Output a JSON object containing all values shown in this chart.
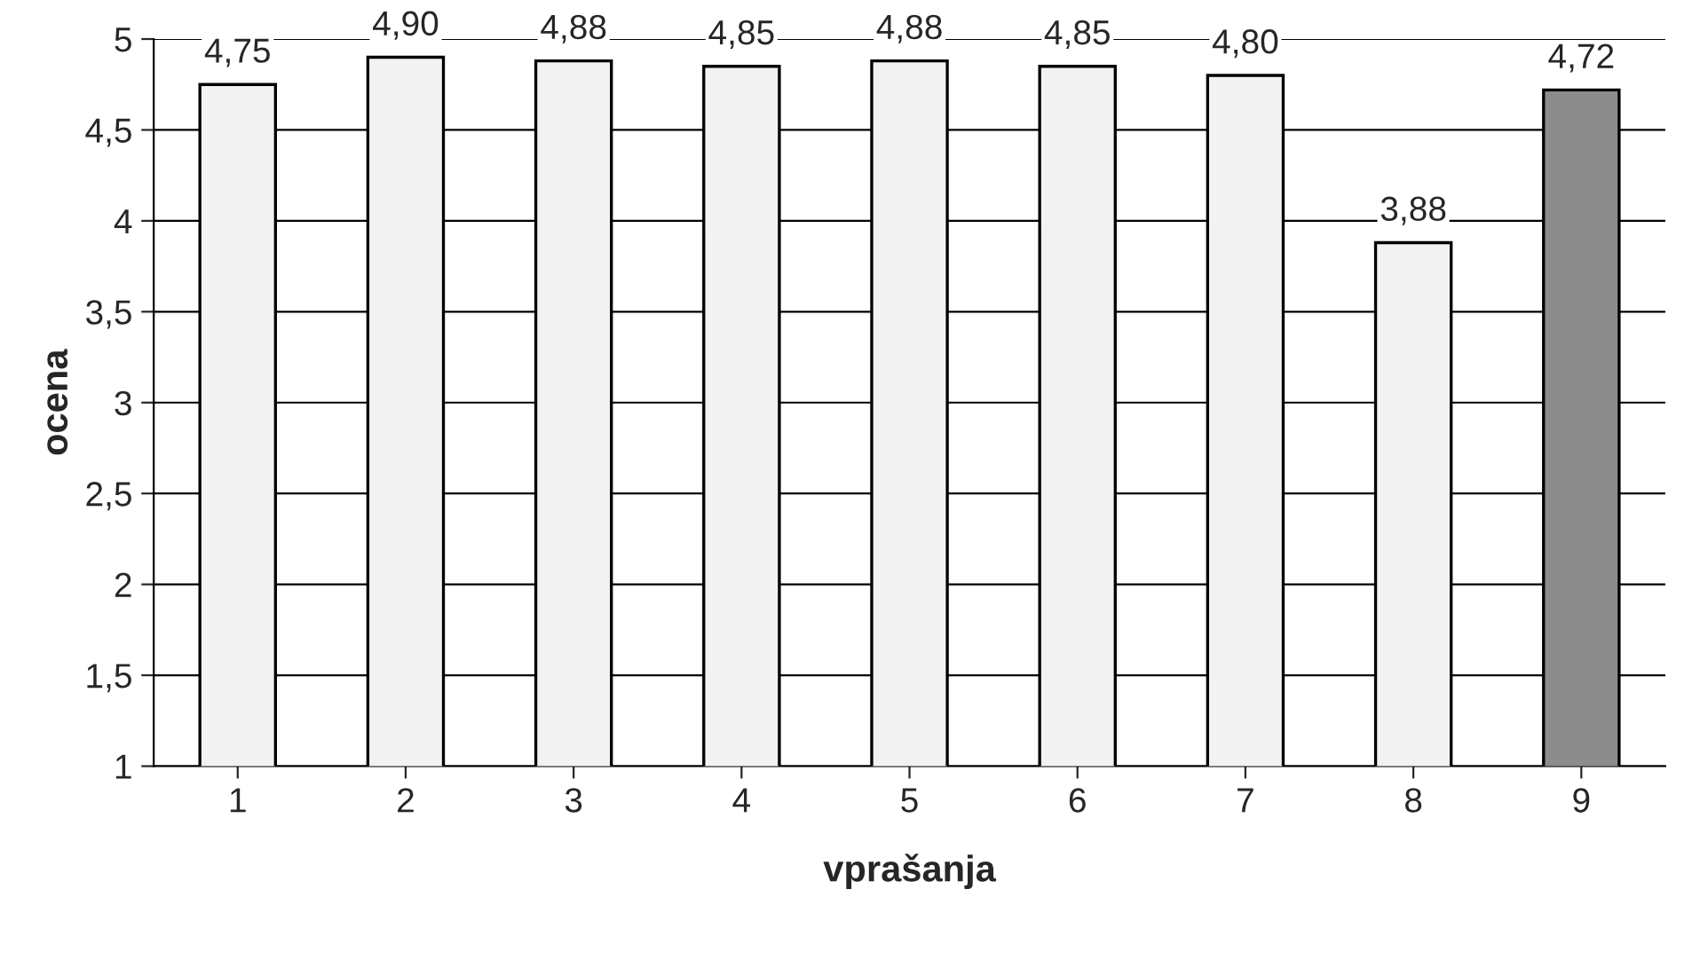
{
  "chart_data": {
    "type": "bar",
    "xlabel": "vprašanja",
    "ylabel": "ocena",
    "categories": [
      "1",
      "2",
      "3",
      "4",
      "5",
      "6",
      "7",
      "8",
      "9"
    ],
    "values": [
      4.75,
      4.9,
      4.88,
      4.85,
      4.88,
      4.85,
      4.8,
      3.88,
      4.72
    ],
    "value_labels": [
      "4,75",
      "4,90",
      "4,88",
      "4,85",
      "4,88",
      "4,85",
      "4,80",
      "3,88",
      "4,72"
    ],
    "colors": [
      "#f2f2f2",
      "#f2f2f2",
      "#f2f2f2",
      "#f2f2f2",
      "#f2f2f2",
      "#f2f2f2",
      "#f2f2f2",
      "#f2f2f2",
      "#8c8c8c"
    ],
    "ylim": [
      1,
      5
    ],
    "yticks": [
      1,
      {
        "value": 1.5,
        "label": "1,5"
      },
      2,
      {
        "value": 2.5,
        "label": "2,5"
      },
      3,
      {
        "value": 3.5,
        "label": "3,5"
      },
      4,
      {
        "value": 4.5,
        "label": "4,5"
      },
      5
    ],
    "grid": "y"
  }
}
